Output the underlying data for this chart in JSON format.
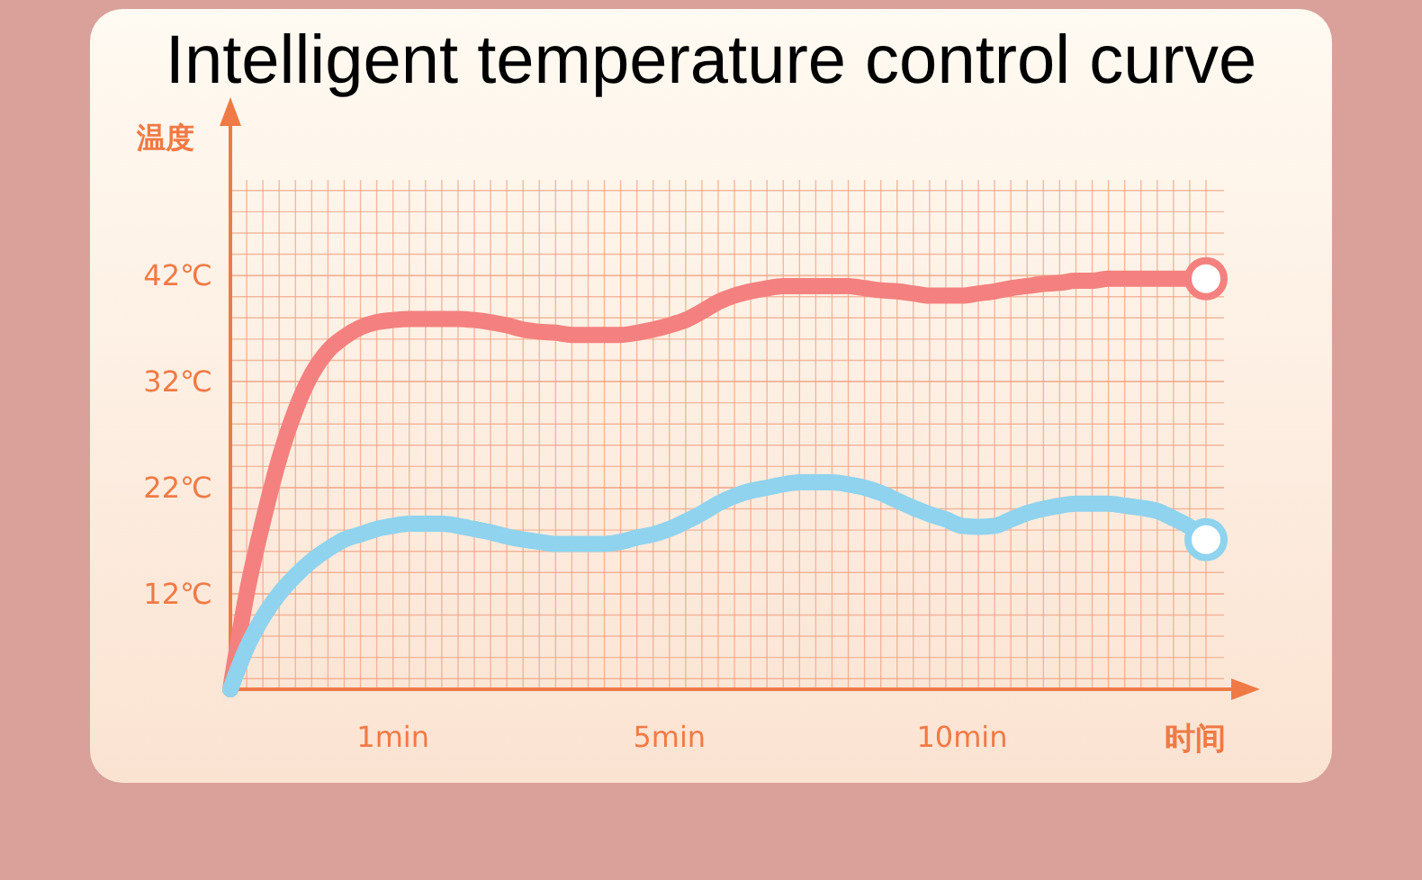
{
  "chart_data": {
    "type": "line",
    "title": "Intelligent temperature control curve",
    "xlabel": "时间",
    "ylabel": "温度",
    "categories": [
      null,
      null,
      null,
      null,
      null,
      null,
      null,
      null,
      null,
      null,
      "1min",
      null,
      null,
      null,
      null,
      null,
      null,
      null,
      null,
      null,
      null,
      null,
      null,
      null,
      null,
      null,
      null,
      "5min",
      null,
      null,
      null,
      null,
      null,
      null,
      null,
      null,
      null,
      null,
      null,
      null,
      null,
      null,
      null,
      null,
      null,
      "10min",
      null,
      null,
      null,
      null,
      null,
      null,
      null,
      null,
      null,
      null,
      null,
      null,
      null,
      null,
      null
    ],
    "series": [
      {
        "color": "#f4817f",
        "values": [
          3.0,
          12.0,
          18.8,
          24.7,
          29.3,
          32.7,
          34.9,
          36.2,
          37.1,
          37.6,
          37.8,
          37.9,
          37.9,
          37.9,
          37.9,
          37.8,
          37.6,
          37.3,
          36.9,
          36.7,
          36.6,
          36.4,
          36.4,
          36.4,
          36.4,
          36.6,
          36.9,
          37.3,
          37.8,
          38.6,
          39.5,
          40.1,
          40.5,
          40.8,
          41.0,
          41.0,
          41.0,
          41.0,
          41.0,
          40.8,
          40.6,
          40.5,
          40.3,
          40.1,
          40.1,
          40.1,
          40.3,
          40.5,
          40.8,
          41.0,
          41.2,
          41.3,
          41.5,
          41.5,
          41.7,
          41.7,
          41.7,
          41.7,
          41.7,
          41.7,
          41.7
        ]
      },
      {
        "color": "#8fd3ee",
        "values": [
          3.0,
          6.9,
          9.8,
          12.0,
          13.7,
          15.1,
          16.2,
          17.1,
          17.6,
          18.1,
          18.4,
          18.6,
          18.6,
          18.6,
          18.4,
          18.1,
          17.8,
          17.4,
          17.1,
          16.9,
          16.7,
          16.7,
          16.7,
          16.7,
          16.9,
          17.3,
          17.6,
          18.1,
          18.8,
          19.6,
          20.5,
          21.2,
          21.7,
          22.0,
          22.3,
          22.5,
          22.5,
          22.5,
          22.3,
          22.0,
          21.5,
          20.8,
          20.1,
          19.5,
          19.0,
          18.4,
          18.3,
          18.4,
          19.0,
          19.6,
          20.0,
          20.3,
          20.5,
          20.5,
          20.5,
          20.3,
          20.1,
          19.8,
          19.1,
          18.3,
          17.1
        ]
      }
    ],
    "ylim": [
      3,
      51
    ],
    "yticks": [
      {
        "value": 12,
        "label": "12℃"
      },
      {
        "value": 22,
        "label": "22℃"
      },
      {
        "value": 32,
        "label": "32℃"
      },
      {
        "value": 42,
        "label": "42℃"
      }
    ],
    "grid": true
  }
}
